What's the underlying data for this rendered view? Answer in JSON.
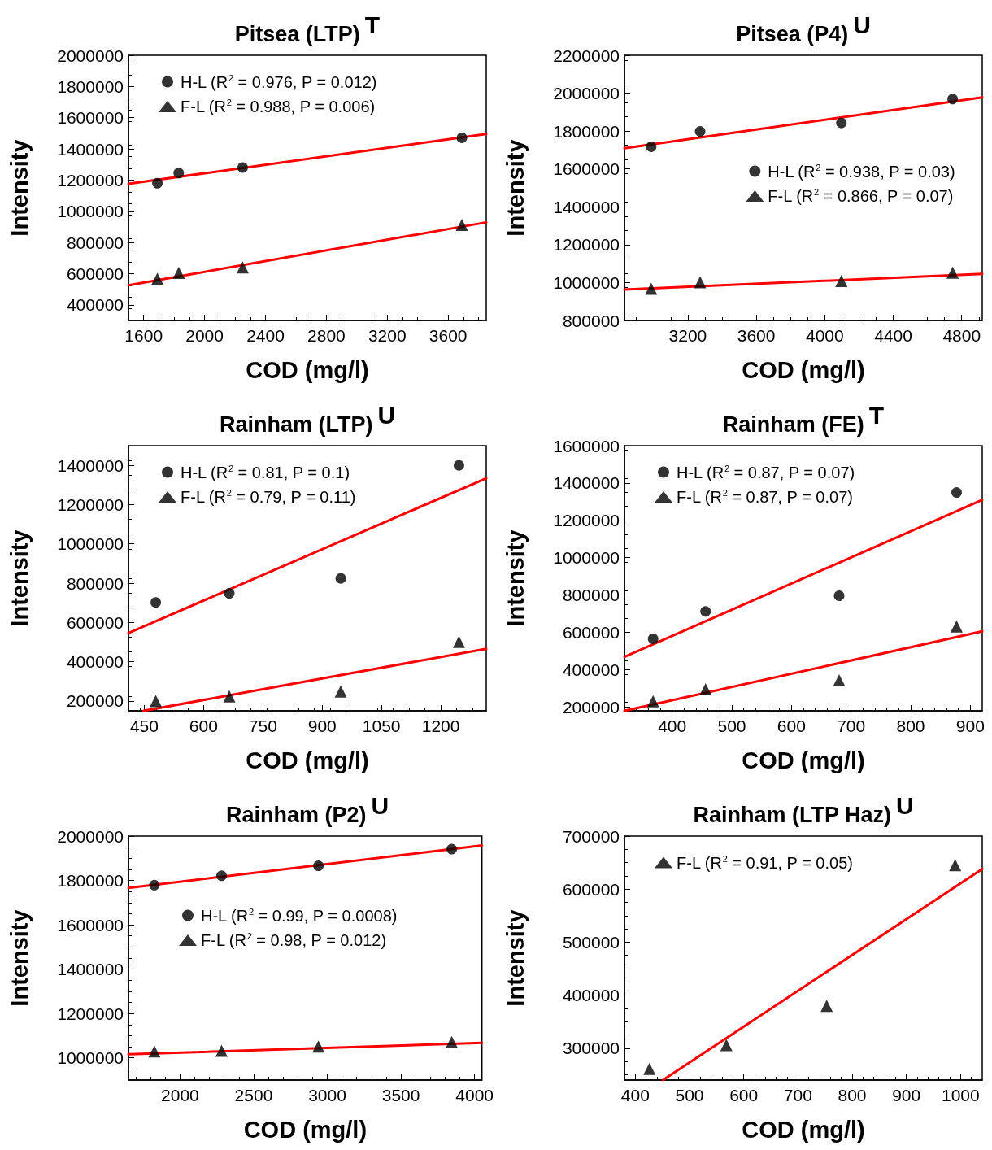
{
  "chart_data": [
    {
      "type": "scatter",
      "title": "Pitsea (LTP)$^{T}$",
      "xlabel": "COD (mg/l)",
      "ylabel": "Intensity",
      "xlim": [
        1500,
        3850
      ],
      "ylim": [
        300000,
        2000000
      ],
      "xticks": [
        1600,
        2000,
        2400,
        2800,
        3200,
        3600
      ],
      "yticks": [
        400000,
        600000,
        800000,
        1000000,
        1200000,
        1400000,
        1600000,
        1800000,
        2000000
      ],
      "grid": false,
      "legend": "top left",
      "series": [
        {
          "name": "H-L (R$^{2}$ = 0.976, P = 0.012)",
          "color": "#000000",
          "marker": "circle",
          "x": [
            1690,
            1830,
            2250,
            3690
          ],
          "values": [
            1180000,
            1245000,
            1281000,
            1471000
          ]
        },
        {
          "name": "F-L (R$^{2}$ = 0.988, P = 0.006)",
          "color": "#000000",
          "marker": "triangle",
          "x": [
            1690,
            1830,
            2250,
            3690
          ],
          "values": [
            567000,
            605000,
            640000,
            913000
          ]
        },
        {
          "type": "line",
          "color": "#ff0000",
          "marker": "none",
          "x": [
            1500,
            3850
          ],
          "values": [
            1176000,
            1495000
          ]
        },
        {
          "type": "line",
          "color": "#ff0000",
          "marker": "none",
          "x": [
            1500,
            3850
          ],
          "values": [
            526000,
            929000
          ]
        }
      ]
    },
    {
      "type": "scatter",
      "title": "Pitsea (P4)$^{U}$",
      "xlabel": "COD (mg/l)",
      "ylabel": "Intensity",
      "xlim": [
        2830,
        4920
      ],
      "ylim": [
        800000,
        2200000
      ],
      "xticks": [
        3200,
        3600,
        4000,
        4400,
        4800
      ],
      "yticks": [
        800000,
        1000000,
        1200000,
        1400000,
        1600000,
        1800000,
        2000000,
        2200000
      ],
      "grid": false,
      "legend": "right",
      "series": [
        {
          "name": "H-L (R$^{2}$ = 0.938, P = 0.03)",
          "color": "#000000",
          "marker": "circle",
          "x": [
            2986,
            3272,
            4097,
            4747
          ],
          "values": [
            1717000,
            1798000,
            1843000,
            1969000
          ]
        },
        {
          "name": "F-L (R$^{2}$ = 0.866, P = 0.07)",
          "color": "#000000",
          "marker": "triangle",
          "x": [
            2986,
            3272,
            4097,
            4747
          ],
          "values": [
            968000,
            1002000,
            1008000,
            1052000
          ]
        },
        {
          "type": "line",
          "color": "#ff0000",
          "marker": "none",
          "x": [
            2830,
            4920
          ],
          "values": [
            1709000,
            1978000
          ]
        },
        {
          "type": "line",
          "color": "#ff0000",
          "marker": "none",
          "x": [
            2830,
            4920
          ],
          "values": [
            963000,
            1046000
          ]
        }
      ]
    },
    {
      "type": "scatter",
      "title": "Rainham (LTP)$^{U}$",
      "xlabel": "COD (mg/l)",
      "ylabel": "Intensity",
      "xlim": [
        410,
        1315
      ],
      "ylim": [
        150000,
        1500000
      ],
      "xticks": [
        450,
        600,
        750,
        900,
        1050,
        1200
      ],
      "yticks": [
        200000,
        400000,
        600000,
        800000,
        1000000,
        1200000,
        1400000
      ],
      "grid": false,
      "legend": "top left",
      "series": [
        {
          "name": "H-L (R$^{2}$ = 0.81, P = 0.1)",
          "color": "#000000",
          "marker": "circle",
          "x": [
            479,
            665,
            947,
            1246
          ],
          "values": [
            702000,
            748000,
            824000,
            1400000
          ]
        },
        {
          "name": "F-L (R$^{2}$ = 0.79, P = 0.11)",
          "color": "#000000",
          "marker": "triangle",
          "x": [
            479,
            665,
            947,
            1246
          ],
          "values": [
            200000,
            224000,
            248000,
            501000
          ]
        },
        {
          "type": "line",
          "color": "#ff0000",
          "marker": "none",
          "x": [
            410,
            1315
          ],
          "values": [
            546000,
            1334000
          ]
        },
        {
          "type": "line",
          "color": "#ff0000",
          "marker": "none",
          "x": [
            448,
            1315
          ],
          "values": [
            150000,
            466000
          ]
        }
      ]
    },
    {
      "type": "scatter",
      "title": "Rainham (FE)$^{T}$",
      "xlabel": "COD (mg/l)",
      "ylabel": "Intensity",
      "xlim": [
        320,
        920
      ],
      "ylim": [
        180000,
        1600000
      ],
      "xticks": [
        400,
        500,
        600,
        700,
        800,
        900
      ],
      "yticks": [
        200000,
        400000,
        600000,
        800000,
        1000000,
        1200000,
        1400000,
        1600000
      ],
      "grid": false,
      "legend": "top left",
      "series": [
        {
          "name": "H-L (R$^{2}$ = 0.87, P = 0.07)",
          "color": "#000000",
          "marker": "circle",
          "x": [
            368,
            456,
            680,
            877
          ],
          "values": [
            566000,
            712000,
            796000,
            1349000
          ]
        },
        {
          "name": "F-L (R$^{2}$ = 0.87, P = 0.07)",
          "color": "#000000",
          "marker": "triangle",
          "x": [
            368,
            456,
            680,
            877
          ],
          "values": [
            231000,
            295000,
            343000,
            632000
          ]
        },
        {
          "type": "line",
          "color": "#ff0000",
          "marker": "none",
          "x": [
            320,
            920
          ],
          "values": [
            469000,
            1310000
          ]
        },
        {
          "type": "line",
          "color": "#ff0000",
          "marker": "none",
          "x": [
            320,
            920
          ],
          "values": [
            180000,
            606000
          ]
        }
      ]
    },
    {
      "type": "scatter",
      "title": "Rainham (P2)$^{U}$",
      "xlabel": "COD (mg/l)",
      "ylabel": "Intensity",
      "xlim": [
        1650,
        4050
      ],
      "ylim": [
        900000,
        2000000
      ],
      "xticks": [
        2000,
        2500,
        3000,
        3500,
        4000
      ],
      "yticks": [
        1000000,
        1200000,
        1400000,
        1600000,
        1800000,
        2000000
      ],
      "grid": false,
      "legend": "center",
      "series": [
        {
          "name": "H-L (R$^{2}$ = 0.99, P = 0.0008)",
          "color": "#000000",
          "marker": "circle",
          "x": [
            1826,
            2282,
            2940,
            3845
          ],
          "values": [
            1779000,
            1821000,
            1866000,
            1941000
          ]
        },
        {
          "name": "F-L (R$^{2}$ = 0.98, P = 0.012)",
          "color": "#000000",
          "marker": "triangle",
          "x": [
            1826,
            2282,
            2940,
            3845
          ],
          "values": [
            1029000,
            1032000,
            1051000,
            1071000
          ]
        },
        {
          "type": "line",
          "color": "#ff0000",
          "marker": "none",
          "x": [
            1650,
            4050
          ],
          "values": [
            1766000,
            1958000
          ]
        },
        {
          "type": "line",
          "color": "#ff0000",
          "marker": "none",
          "x": [
            1650,
            4050
          ],
          "values": [
            1016000,
            1068000
          ]
        }
      ]
    },
    {
      "type": "scatter",
      "title": "Rainham (LTP Haz)$^{U}$",
      "xlabel": "COD (mg/l)",
      "ylabel": "Intensity",
      "xlim": [
        380,
        1040
      ],
      "ylim": [
        240000,
        700000
      ],
      "xticks": [
        400,
        500,
        600,
        700,
        800,
        900,
        1000
      ],
      "yticks": [
        300000,
        400000,
        500000,
        600000,
        700000
      ],
      "grid": false,
      "legend": "top left",
      "series": [
        {
          "name": "F-L (R$^{2}$ = 0.91, P = 0.05)",
          "color": "#000000",
          "marker": "triangle",
          "x": [
            426,
            568,
            753,
            990
          ],
          "values": [
            261000,
            306000,
            380000,
            645000
          ]
        },
        {
          "type": "line",
          "color": "#ff0000",
          "marker": "none",
          "x": [
            451,
            1040
          ],
          "values": [
            240000,
            638000
          ]
        }
      ]
    }
  ]
}
